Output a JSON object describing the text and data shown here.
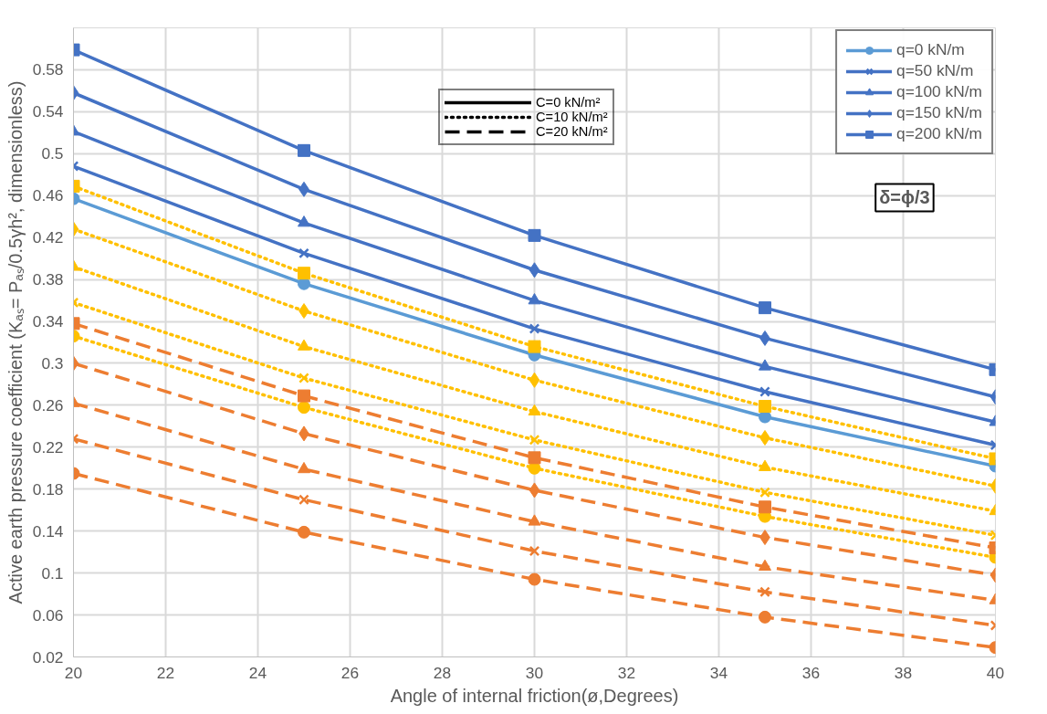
{
  "chart_data": {
    "type": "line",
    "xlabel": "Angle of internal friction(ø,Degrees)",
    "ylabel": "Active earth pressure coefficient (Kₐₛ= Pₐₛ/0.5γh², dimensionless)",
    "x": [
      20,
      25,
      30,
      35,
      40
    ],
    "xlim": [
      20,
      40
    ],
    "xticks": [
      20,
      22,
      24,
      26,
      28,
      30,
      32,
      34,
      36,
      38,
      40
    ],
    "ylim": [
      0.02,
      0.62
    ],
    "yticks": [
      0.02,
      0.06,
      0.1,
      0.14,
      0.18,
      0.22,
      0.26,
      0.3,
      0.34,
      0.38,
      0.42,
      0.46,
      0.5,
      0.54,
      0.58
    ],
    "grid": true,
    "legend": "top right",
    "annotations": [
      "C=0 kN/m²",
      "C=10 kN/m²",
      "C=20 kN/m²",
      "δ=ϕ/3"
    ],
    "series": [
      {
        "name": "q=0 kN/m",
        "color": "#5b9bd5",
        "marker": "circle",
        "line_style": "solid",
        "values": [
          0.457,
          0.376,
          0.308,
          0.249,
          0.202
        ]
      },
      {
        "name": "q=50 kN/m",
        "color": "#4472c4",
        "marker": "cross",
        "line_style": "solid",
        "values": [
          0.488,
          0.405,
          0.333,
          0.273,
          0.222
        ]
      },
      {
        "name": "q=100 kN/m",
        "color": "#4472c4",
        "marker": "triangle",
        "line_style": "solid",
        "values": [
          0.521,
          0.434,
          0.36,
          0.297,
          0.244
        ]
      },
      {
        "name": "q=150 kN/m",
        "color": "#4472c4",
        "marker": "diamond",
        "line_style": "solid",
        "values": [
          0.558,
          0.466,
          0.389,
          0.324,
          0.268
        ]
      },
      {
        "name": "q=200 kN/m",
        "color": "#4472c4",
        "marker": "square",
        "line_style": "solid",
        "values": [
          0.599,
          0.503,
          0.422,
          0.353,
          0.294
        ]
      },
      {
        "color": "#ffc000",
        "marker": "circle",
        "line_style": "dotted",
        "values": [
          0.326,
          0.258,
          0.2,
          0.154,
          0.115
        ]
      },
      {
        "color": "#ffc000",
        "marker": "cross",
        "line_style": "dotted",
        "values": [
          0.358,
          0.286,
          0.227,
          0.177,
          0.136
        ]
      },
      {
        "color": "#ffc000",
        "marker": "triangle",
        "line_style": "dotted",
        "values": [
          0.392,
          0.316,
          0.254,
          0.201,
          0.159
        ]
      },
      {
        "color": "#ffc000",
        "marker": "diamond",
        "line_style": "dotted",
        "values": [
          0.428,
          0.35,
          0.284,
          0.229,
          0.183
        ]
      },
      {
        "color": "#ffc000",
        "marker": "square",
        "line_style": "dotted",
        "values": [
          0.469,
          0.386,
          0.316,
          0.259,
          0.209
        ]
      },
      {
        "color": "#ed7d31",
        "marker": "circle",
        "line_style": "dashed",
        "values": [
          0.195,
          0.139,
          0.094,
          0.058,
          0.029
        ]
      },
      {
        "color": "#ed7d31",
        "marker": "cross",
        "line_style": "dashed",
        "values": [
          0.228,
          0.17,
          0.121,
          0.082,
          0.05
        ]
      },
      {
        "color": "#ed7d31",
        "marker": "triangle",
        "line_style": "dashed",
        "values": [
          0.262,
          0.199,
          0.149,
          0.106,
          0.074
        ]
      },
      {
        "color": "#ed7d31",
        "marker": "diamond",
        "line_style": "dashed",
        "values": [
          0.3,
          0.233,
          0.179,
          0.134,
          0.098
        ]
      },
      {
        "color": "#ed7d31",
        "marker": "square",
        "line_style": "dashed",
        "values": [
          0.338,
          0.269,
          0.21,
          0.163,
          0.124
        ]
      }
    ]
  }
}
